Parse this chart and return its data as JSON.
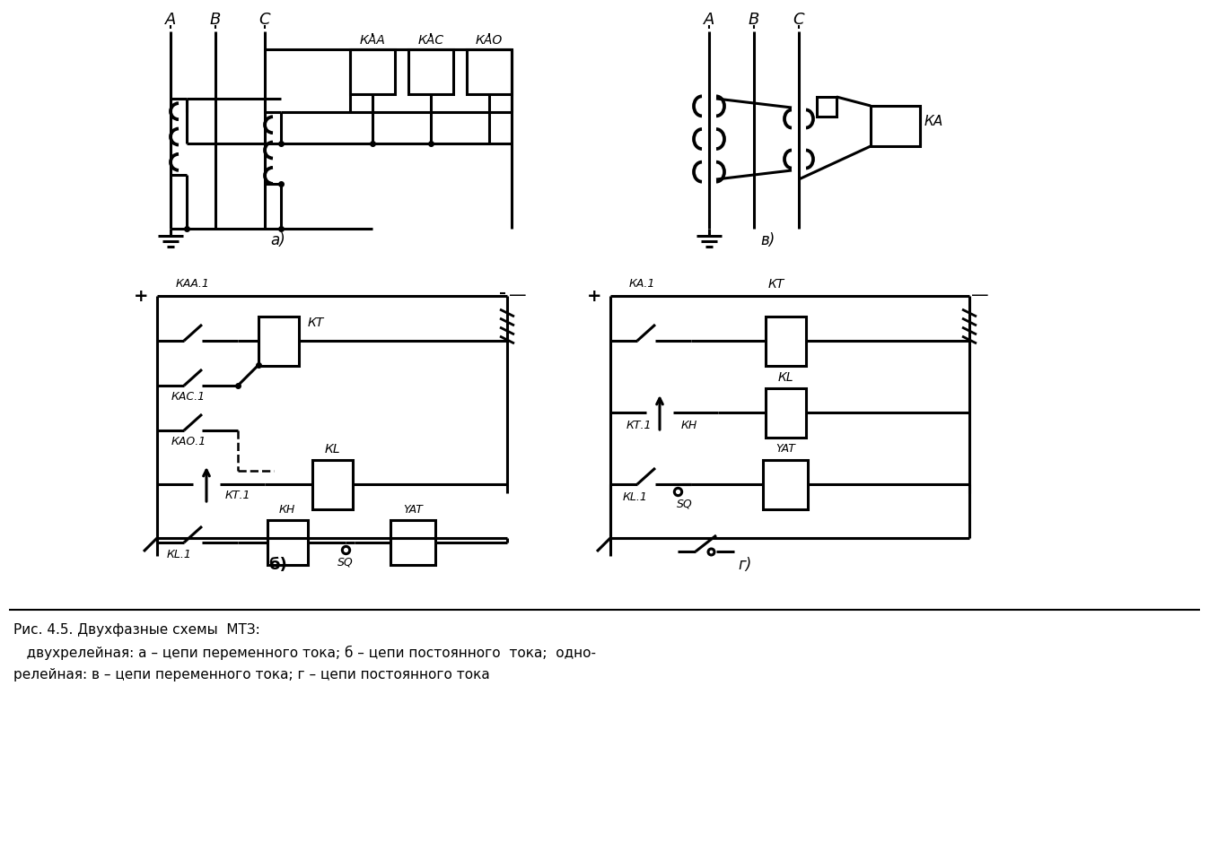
{
  "title": "Рис. 4.5. Двухфазные схемы  МТЗ:",
  "caption_line2": "   двухрелейная: а – цепи переменного тока; б – цепи постоянного  тока;  одно-",
  "caption_line3": "релейная: в – цепи переменного тока; г – цепи постоянного тока",
  "bg_color": "#ffffff",
  "line_color": "#000000",
  "lw": 2.2
}
